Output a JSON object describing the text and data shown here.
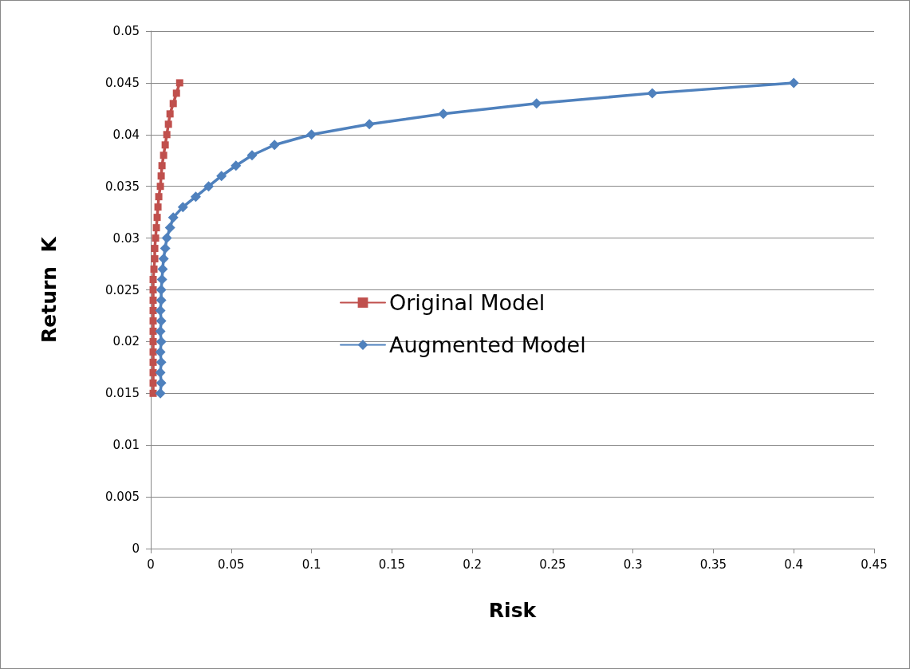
{
  "chart_data": {
    "type": "line",
    "xlabel": "Risk",
    "ylabel": "Return  K",
    "xlim": [
      0,
      0.45
    ],
    "xticks": [
      0,
      0.05,
      0.1,
      0.15,
      0.2,
      0.25,
      0.3,
      0.35,
      0.4,
      0.45
    ],
    "ylim": [
      0,
      0.05
    ],
    "yticks": [
      0,
      0.005,
      0.01,
      0.015,
      0.02,
      0.025,
      0.03,
      0.035,
      0.04,
      0.045,
      0.05
    ],
    "grid": "y",
    "legend": "center",
    "line_style": "solid",
    "series": [
      {
        "name": "Original Model",
        "color": "#c0504d",
        "marker": "square",
        "x": [
          0.0015,
          0.0015,
          0.0015,
          0.0015,
          0.0015,
          0.0015,
          0.0015,
          0.0015,
          0.0015,
          0.0015,
          0.0015,
          0.0015,
          0.002,
          0.0025,
          0.0025,
          0.003,
          0.0035,
          0.004,
          0.0045,
          0.005,
          0.006,
          0.0065,
          0.007,
          0.008,
          0.009,
          0.01,
          0.011,
          0.012,
          0.014,
          0.016,
          0.018
        ],
        "values": [
          0.015,
          0.016,
          0.017,
          0.018,
          0.019,
          0.02,
          0.021,
          0.022,
          0.023,
          0.024,
          0.025,
          0.026,
          0.027,
          0.028,
          0.029,
          0.03,
          0.031,
          0.032,
          0.033,
          0.034,
          0.035,
          0.036,
          0.037,
          0.038,
          0.039,
          0.04,
          0.041,
          0.042,
          0.043,
          0.044,
          0.045
        ]
      },
      {
        "name": "Augmented Model",
        "color": "#4f81bd",
        "marker": "diamond",
        "x": [
          0.006,
          0.0065,
          0.006,
          0.0065,
          0.006,
          0.0065,
          0.006,
          0.0065,
          0.006,
          0.0065,
          0.0065,
          0.007,
          0.0074,
          0.008,
          0.009,
          0.01,
          0.012,
          0.014,
          0.02,
          0.028,
          0.036,
          0.044,
          0.053,
          0.063,
          0.077,
          0.1,
          0.136,
          0.182,
          0.24,
          0.312,
          0.4
        ],
        "values": [
          0.015,
          0.016,
          0.017,
          0.018,
          0.019,
          0.02,
          0.021,
          0.022,
          0.023,
          0.024,
          0.025,
          0.026,
          0.027,
          0.028,
          0.029,
          0.03,
          0.031,
          0.032,
          0.033,
          0.034,
          0.035,
          0.036,
          0.037,
          0.038,
          0.039,
          0.04,
          0.041,
          0.042,
          0.043,
          0.044,
          0.045
        ]
      }
    ]
  }
}
